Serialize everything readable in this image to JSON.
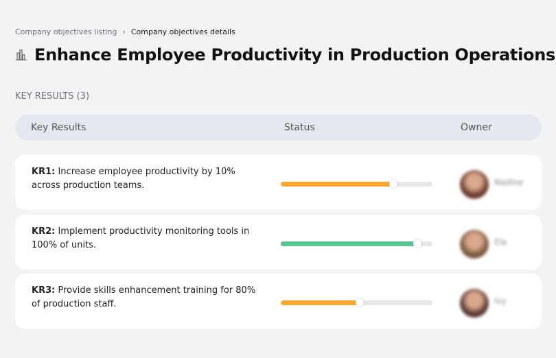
{
  "breadcrumb": {
    "items": [
      "Company objectives listing",
      "Company objectives details"
    ],
    "separator": "›"
  },
  "title": "Enhance Employee Productivity in Production Operations",
  "title_icon": "buildings-chart-icon",
  "key_results_heading": "KEY RESULTS (3)",
  "table": {
    "headers": {
      "key_results": "Key Results",
      "status": "Status",
      "owner": "Owner"
    },
    "rows": [
      {
        "id": "KR1:",
        "text": "Increase employee productivity by 10% across production teams.",
        "progress": 74,
        "color": "#ffa733",
        "owner": "Nadine",
        "avatar_color": "#6b3b2e"
      },
      {
        "id": "KR2:",
        "text": "Implement productivity monitoring tools in 100% of units.",
        "progress": 90,
        "color": "#58c78f",
        "owner": "Ela",
        "avatar_color": "#7a5a40"
      },
      {
        "id": "KR3:",
        "text": "Provide skills enhancement training for 80% of production staff.",
        "progress": 52,
        "color": "#ffa733",
        "owner": "Ivy",
        "avatar_color": "#5a3a34"
      }
    ]
  }
}
